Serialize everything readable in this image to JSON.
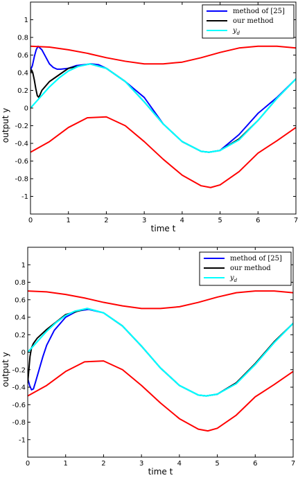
{
  "chart_data": [
    {
      "type": "line",
      "xlabel": "time t",
      "ylabel": "output y",
      "xlim": [
        0,
        7
      ],
      "ylim": [
        -1.2,
        1.2
      ],
      "xticks": [
        "0",
        "1",
        "2",
        "3",
        "4",
        "5",
        "6",
        "7"
      ],
      "yticks": [
        "-1",
        "-0.8",
        "-0.6",
        "-0.4",
        "-0.2",
        "0",
        "0.2",
        "0.4",
        "0.6",
        "0.8",
        "1"
      ],
      "grid": false,
      "legend_position": "top-right",
      "series": [
        {
          "name": "method of [25]",
          "color": "#0000ff",
          "x": [
            0,
            0.05,
            0.1,
            0.15,
            0.2,
            0.3,
            0.4,
            0.5,
            0.6,
            0.7,
            0.8,
            1.0,
            1.2,
            1.4,
            1.6,
            1.8,
            2.0,
            2.5,
            3.0,
            3.5,
            4.0,
            4.5,
            4.7,
            5.0,
            5.5,
            6.0,
            6.5,
            7.0
          ],
          "y": [
            0.43,
            0.48,
            0.58,
            0.66,
            0.7,
            0.66,
            0.58,
            0.5,
            0.46,
            0.44,
            0.44,
            0.45,
            0.48,
            0.49,
            0.5,
            0.49,
            0.45,
            0.3,
            0.12,
            -0.18,
            -0.38,
            -0.49,
            -0.5,
            -0.48,
            -0.3,
            -0.06,
            0.12,
            0.33
          ]
        },
        {
          "name": "our method",
          "color": "#000000",
          "x": [
            0,
            0.03,
            0.06,
            0.1,
            0.14,
            0.18,
            0.22,
            0.3,
            0.5,
            1.0,
            1.57,
            2.0,
            2.5,
            3.0,
            3.5,
            4.0,
            4.5,
            4.71,
            5.0,
            5.5,
            6.0,
            6.5,
            7.0
          ],
          "y": [
            0.4,
            0.43,
            0.4,
            0.32,
            0.22,
            0.14,
            0.12,
            0.2,
            0.3,
            0.45,
            0.5,
            0.45,
            0.3,
            0.07,
            -0.18,
            -0.38,
            -0.49,
            -0.5,
            -0.48,
            -0.35,
            -0.14,
            0.11,
            0.33
          ]
        },
        {
          "name": "y_d",
          "label": "yd",
          "color": "#00ffff",
          "x": [
            0,
            0.25,
            0.5,
            0.75,
            1.0,
            1.25,
            1.57,
            2.0,
            2.5,
            3.0,
            3.5,
            4.0,
            4.5,
            4.71,
            5.0,
            5.5,
            6.0,
            6.5,
            7.0
          ],
          "y": [
            0.0,
            0.12,
            0.24,
            0.34,
            0.42,
            0.47,
            0.5,
            0.45,
            0.3,
            0.07,
            -0.18,
            -0.38,
            -0.49,
            -0.5,
            -0.48,
            -0.36,
            -0.14,
            0.11,
            0.33
          ]
        },
        {
          "name": "upper bound",
          "color": "#ff0000",
          "x": [
            0,
            0.5,
            1.0,
            1.5,
            2.0,
            2.5,
            3.0,
            3.5,
            4.0,
            4.5,
            5.0,
            5.5,
            6.0,
            6.5,
            7.0
          ],
          "y": [
            0.7,
            0.69,
            0.66,
            0.62,
            0.57,
            0.53,
            0.5,
            0.5,
            0.52,
            0.57,
            0.63,
            0.68,
            0.7,
            0.7,
            0.68
          ]
        },
        {
          "name": "lower bound",
          "color": "#ff0000",
          "x": [
            0,
            0.5,
            1.0,
            1.5,
            2.0,
            2.5,
            3.0,
            3.5,
            4.0,
            4.5,
            4.75,
            5.0,
            5.5,
            6.0,
            6.5,
            7.0
          ],
          "y": [
            -0.5,
            -0.38,
            -0.22,
            -0.11,
            -0.1,
            -0.2,
            -0.38,
            -0.58,
            -0.76,
            -0.88,
            -0.9,
            -0.87,
            -0.72,
            -0.51,
            -0.37,
            -0.22
          ]
        }
      ]
    },
    {
      "type": "line",
      "xlabel": "time t",
      "ylabel": "output y",
      "xlim": [
        0,
        7
      ],
      "ylim": [
        -1.2,
        1.2
      ],
      "xticks": [
        "0",
        "1",
        "2",
        "3",
        "4",
        "5",
        "6",
        "7"
      ],
      "yticks": [
        "-1",
        "-0.8",
        "-0.6",
        "-0.4",
        "-0.2",
        "0",
        "0.2",
        "0.4",
        "0.6",
        "0.8",
        "1"
      ],
      "grid": false,
      "legend_position": "top-right",
      "series": [
        {
          "name": "method of [25]",
          "color": "#0000ff",
          "x": [
            0,
            0.05,
            0.1,
            0.15,
            0.2,
            0.3,
            0.4,
            0.5,
            0.7,
            1.0,
            1.3,
            1.6,
            2.0,
            2.5,
            3.0,
            3.5,
            4.0,
            4.5,
            4.7,
            5.0,
            5.5,
            6.0,
            6.5,
            7.0
          ],
          "y": [
            -0.3,
            -0.38,
            -0.43,
            -0.42,
            -0.35,
            -0.2,
            -0.05,
            0.08,
            0.25,
            0.4,
            0.47,
            0.49,
            0.45,
            0.3,
            0.07,
            -0.18,
            -0.38,
            -0.49,
            -0.5,
            -0.48,
            -0.35,
            -0.14,
            0.11,
            0.33
          ]
        },
        {
          "name": "our method",
          "color": "#000000",
          "x": [
            0,
            0.03,
            0.06,
            0.1,
            0.15,
            0.25,
            0.5,
            1.0,
            1.57,
            2.0,
            2.5,
            3.0,
            3.5,
            4.0,
            4.5,
            4.71,
            5.0,
            5.5,
            6.0,
            6.5,
            7.0
          ],
          "y": [
            -0.35,
            -0.2,
            -0.05,
            0.05,
            0.1,
            0.16,
            0.26,
            0.43,
            0.5,
            0.45,
            0.3,
            0.07,
            -0.18,
            -0.38,
            -0.49,
            -0.5,
            -0.48,
            -0.35,
            -0.13,
            0.12,
            0.33
          ]
        },
        {
          "name": "y_d",
          "label": "yd",
          "color": "#00ffff",
          "x": [
            0,
            0.25,
            0.5,
            0.75,
            1.0,
            1.25,
            1.57,
            2.0,
            2.5,
            3.0,
            3.5,
            4.0,
            4.5,
            4.71,
            5.0,
            5.5,
            6.0,
            6.5,
            7.0
          ],
          "y": [
            0.0,
            0.12,
            0.24,
            0.34,
            0.42,
            0.47,
            0.5,
            0.45,
            0.3,
            0.07,
            -0.18,
            -0.38,
            -0.49,
            -0.5,
            -0.48,
            -0.36,
            -0.14,
            0.11,
            0.33
          ]
        },
        {
          "name": "upper bound",
          "color": "#ff0000",
          "x": [
            0,
            0.5,
            1.0,
            1.5,
            2.0,
            2.5,
            3.0,
            3.5,
            4.0,
            4.5,
            5.0,
            5.5,
            6.0,
            6.5,
            7.0
          ],
          "y": [
            0.7,
            0.69,
            0.66,
            0.62,
            0.57,
            0.53,
            0.5,
            0.5,
            0.52,
            0.57,
            0.63,
            0.68,
            0.7,
            0.7,
            0.68
          ]
        },
        {
          "name": "lower bound",
          "color": "#ff0000",
          "x": [
            0,
            0.5,
            1.0,
            1.5,
            2.0,
            2.5,
            3.0,
            3.5,
            4.0,
            4.5,
            4.75,
            5.0,
            5.5,
            6.0,
            6.5,
            7.0
          ],
          "y": [
            -0.5,
            -0.38,
            -0.22,
            -0.11,
            -0.1,
            -0.2,
            -0.38,
            -0.58,
            -0.76,
            -0.88,
            -0.9,
            -0.87,
            -0.72,
            -0.51,
            -0.37,
            -0.22
          ]
        }
      ]
    }
  ]
}
